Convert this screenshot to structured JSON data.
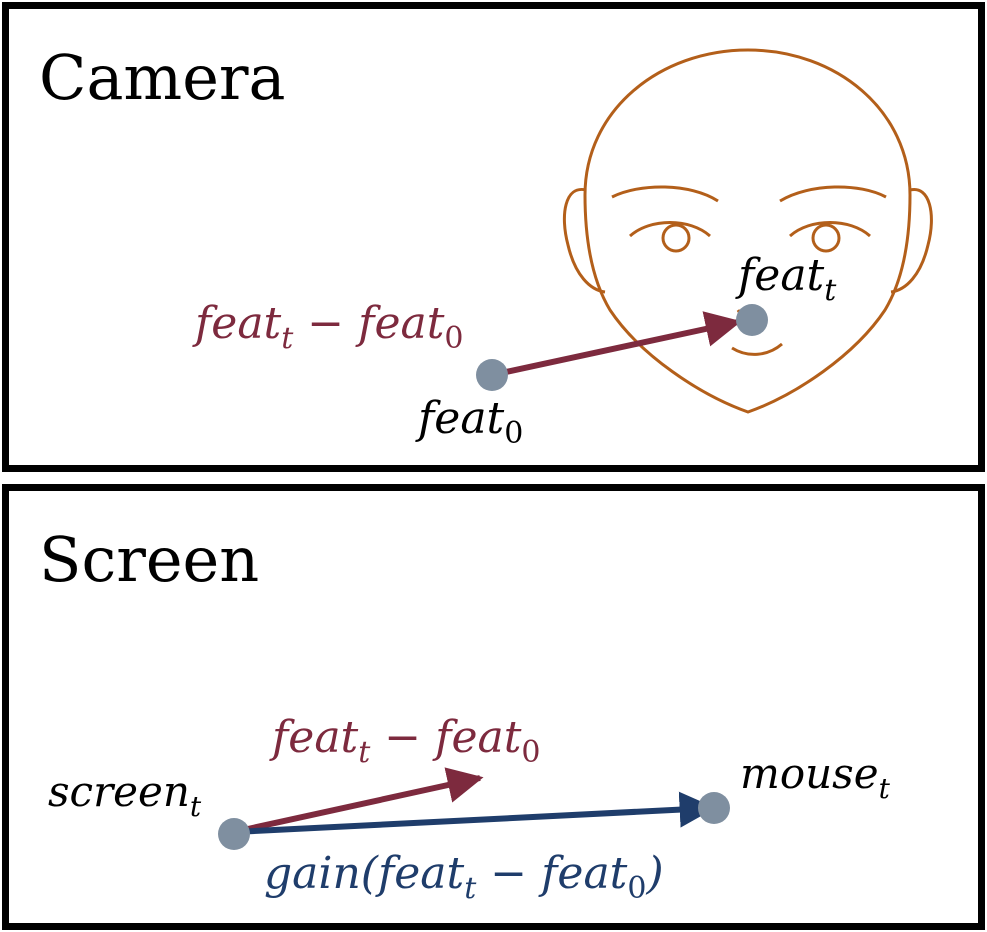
{
  "camera": {
    "title": "Camera",
    "label_feat_t": "feat",
    "label_feat_t_sub": "t",
    "label_feat_0": "feat",
    "label_feat_0_sub": "0",
    "label_diff": {
      "a": "feat",
      "a_sub": "t",
      "op": " − ",
      "b": "feat",
      "b_sub": "0"
    }
  },
  "screen": {
    "title": "Screen",
    "label_screen": "screen",
    "label_screen_sub": "t",
    "label_mouse": "mouse",
    "label_mouse_sub": "t",
    "label_diff": {
      "a": "feat",
      "a_sub": "t",
      "op": " − ",
      "b": "feat",
      "b_sub": "0"
    },
    "label_gain": {
      "pre": "gain(feat",
      "a_sub": "t",
      "op": " − ",
      "b": "feat",
      "b_sub": "0",
      "post": ")"
    }
  },
  "colors": {
    "frame": "#000000",
    "face_outline": "#b35f1a",
    "point": "#7f8fa0",
    "diff_arrow": "#7d2a3e",
    "gain_arrow": "#1f3d6b",
    "text": "#000000"
  }
}
